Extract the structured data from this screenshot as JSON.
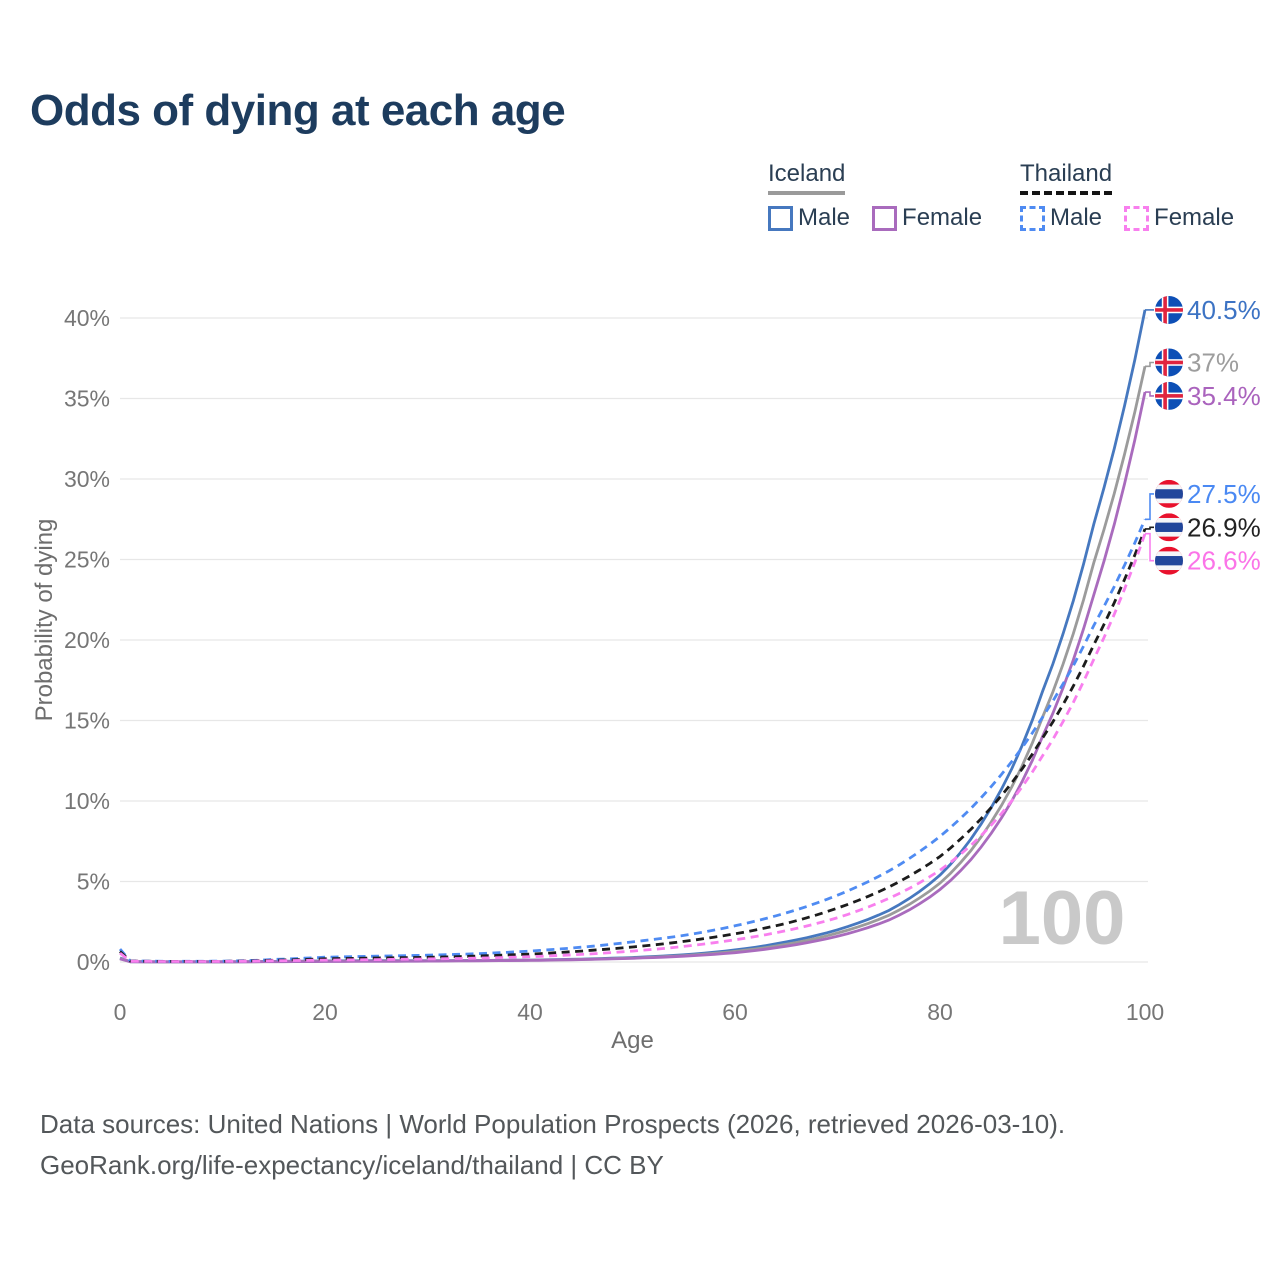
{
  "title": "Odds of dying at each age",
  "legend": {
    "groups": [
      {
        "name": "Iceland",
        "line_style": "solid",
        "underline_color": "#9a9a9a",
        "items": [
          {
            "label": "Male",
            "color": "#4678bf"
          },
          {
            "label": "Female",
            "color": "#a96bbd"
          }
        ]
      },
      {
        "name": "Thailand",
        "line_style": "dashed",
        "underline_color": "#141414",
        "items": [
          {
            "label": "Male",
            "color": "#4f8bf2"
          },
          {
            "label": "Female",
            "color": "#f87fee"
          }
        ]
      }
    ]
  },
  "footer": {
    "line1": "Data sources: United Nations | World Population Prospects (2026, retrieved 2026-03-10).",
    "line2": "GeoRank.org/life-expectancy/iceland/thailand | CC BY"
  },
  "chart_data": {
    "type": "line",
    "title": "Odds of dying at each age",
    "xlabel": "Age",
    "ylabel": "Probability of dying",
    "xlim": [
      0,
      100
    ],
    "ylim": [
      0,
      40
    ],
    "grid": true,
    "legend_position": "top-right",
    "watermark": "100",
    "watermark_color": "#c9c9c9",
    "grid_color": "#e7e7e7",
    "tick_color": "#767676",
    "axis_title_color": "#6e6e6e",
    "xticks": [
      {
        "value": 0,
        "label": "0"
      },
      {
        "value": 20,
        "label": "20"
      },
      {
        "value": 40,
        "label": "40"
      },
      {
        "value": 60,
        "label": "60"
      },
      {
        "value": 80,
        "label": "80"
      },
      {
        "value": 100,
        "label": "100"
      }
    ],
    "yticks": [
      {
        "value": 0,
        "label": "0%"
      },
      {
        "value": 5,
        "label": "5%"
      },
      {
        "value": 10,
        "label": "10%"
      },
      {
        "value": 15,
        "label": "15%"
      },
      {
        "value": 20,
        "label": "20%"
      },
      {
        "value": 25,
        "label": "25%"
      },
      {
        "value": 30,
        "label": "30%"
      },
      {
        "value": 35,
        "label": "35%"
      },
      {
        "value": 40,
        "label": "40%"
      }
    ],
    "flag_colors": {
      "iceland": {
        "blue": "#0d4fb6",
        "white": "#ffffff",
        "red": "#e0243f"
      },
      "thailand": {
        "red": "#e8112d",
        "white": "#f4f5f8",
        "blue": "#21469b"
      }
    },
    "ages": [
      0,
      1,
      5,
      10,
      15,
      20,
      25,
      30,
      35,
      40,
      45,
      50,
      55,
      60,
      65,
      70,
      75,
      80,
      85,
      90,
      95,
      100
    ],
    "series": [
      {
        "name": "Iceland Male",
        "country": "Iceland",
        "sex": "Male",
        "color": "#4678bf",
        "dashed": false,
        "flag": "iceland",
        "end_label": "40.5%",
        "end_value": 40.5,
        "label_color": "#3c73c4",
        "values": [
          0.25,
          0.02,
          0.01,
          0.012,
          0.04,
          0.07,
          0.08,
          0.085,
          0.095,
          0.12,
          0.18,
          0.28,
          0.45,
          0.75,
          1.25,
          2.0,
          3.2,
          5.4,
          9.6,
          16.8,
          27.2,
          40.5
        ]
      },
      {
        "name": "Iceland Both sexes",
        "country": "Iceland",
        "sex": "Both",
        "color": "#9b9b9b",
        "dashed": false,
        "flag": "iceland",
        "end_label": "37%",
        "end_value": 37,
        "label_color": "#9d9d9d",
        "values": [
          0.22,
          0.018,
          0.01,
          0.011,
          0.03,
          0.05,
          0.06,
          0.07,
          0.085,
          0.11,
          0.16,
          0.25,
          0.4,
          0.66,
          1.1,
          1.8,
          2.9,
          4.9,
          8.7,
          15.2,
          24.8,
          37
        ]
      },
      {
        "name": "Iceland Female",
        "country": "Iceland",
        "sex": "Female",
        "color": "#a96bbd",
        "dashed": false,
        "flag": "iceland",
        "end_label": "35.4%",
        "end_value": 35.4,
        "label_color": "#aa63bd",
        "values": [
          0.19,
          0.016,
          0.009,
          0.01,
          0.02,
          0.03,
          0.04,
          0.055,
          0.075,
          0.1,
          0.15,
          0.23,
          0.36,
          0.58,
          0.98,
          1.6,
          2.6,
          4.5,
          8.0,
          14.0,
          22.8,
          35.4
        ]
      },
      {
        "name": "Thailand Male",
        "country": "Thailand",
        "sex": "Male",
        "color": "#4f8bf2",
        "dashed": true,
        "flag": "thailand",
        "end_label": "27.5%",
        "end_value": 27.5,
        "label_color": "#4a89f3",
        "values": [
          0.8,
          0.07,
          0.04,
          0.05,
          0.16,
          0.3,
          0.36,
          0.42,
          0.52,
          0.68,
          0.92,
          1.25,
          1.65,
          2.25,
          3.05,
          4.15,
          5.65,
          7.8,
          10.9,
          15.2,
          20.9,
          27.5
        ]
      },
      {
        "name": "Thailand Both sexes",
        "country": "Thailand",
        "sex": "Both",
        "color": "#1c1c1c",
        "dashed": true,
        "flag": "thailand",
        "end_label": "26.9%",
        "end_value": 26.9,
        "label_color": "#222222",
        "values": [
          0.65,
          0.06,
          0.035,
          0.04,
          0.11,
          0.2,
          0.25,
          0.29,
          0.37,
          0.49,
          0.68,
          0.93,
          1.28,
          1.75,
          2.4,
          3.35,
          4.65,
          6.55,
          9.6,
          13.9,
          19.7,
          26.9
        ]
      },
      {
        "name": "Thailand Female",
        "country": "Thailand",
        "sex": "Female",
        "color": "#f87fee",
        "dashed": true,
        "flag": "thailand",
        "end_label": "26.6%",
        "end_value": 26.6,
        "label_color": "#fb74e8",
        "values": [
          0.55,
          0.05,
          0.03,
          0.035,
          0.08,
          0.12,
          0.15,
          0.19,
          0.24,
          0.33,
          0.47,
          0.68,
          0.97,
          1.38,
          1.95,
          2.75,
          3.95,
          5.7,
          8.5,
          12.8,
          18.8,
          26.6
        ]
      }
    ]
  }
}
